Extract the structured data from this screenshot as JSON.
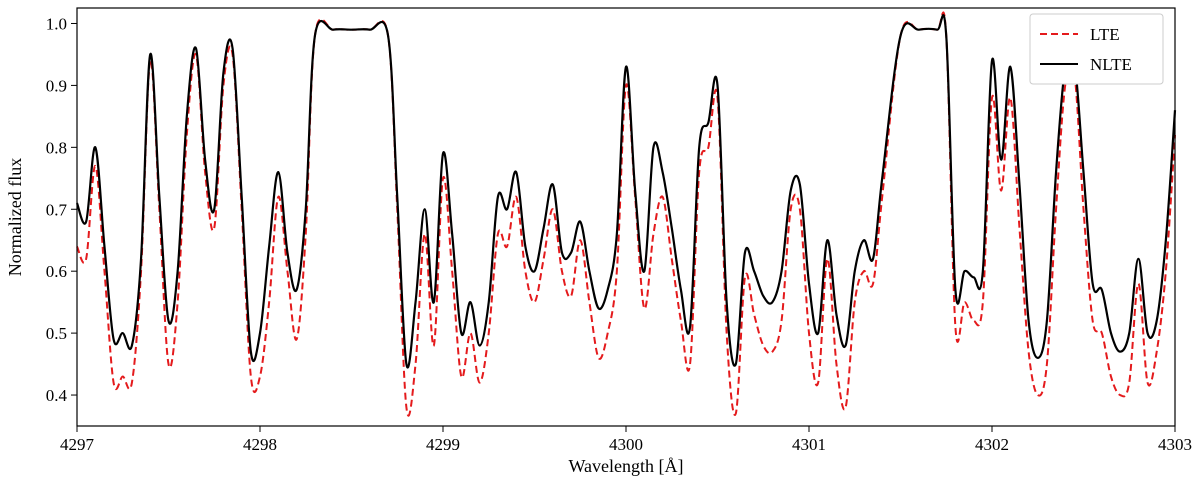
{
  "chart_data": {
    "type": "line",
    "title": "",
    "xlabel": "Wavelength [Å]",
    "ylabel": "Normalized flux",
    "xlim": [
      4297,
      4303
    ],
    "ylim": [
      0.35,
      1.025
    ],
    "xticks": [
      4297,
      4298,
      4299,
      4300,
      4301,
      4302,
      4303
    ],
    "yticks": [
      0.4,
      0.5,
      0.6,
      0.7,
      0.8,
      0.9,
      1.0
    ],
    "xtick_labels": [
      "4297",
      "4298",
      "4299",
      "4300",
      "4301",
      "4302",
      "4303"
    ],
    "ytick_labels": [
      "0.4",
      "0.5",
      "0.6",
      "0.7",
      "0.8",
      "0.9",
      "1.0"
    ],
    "grid": false,
    "legend_position": "top-right",
    "series": [
      {
        "name": "LTE",
        "color": "#e41a1c",
        "style": "dashed",
        "x": [
          4297.0,
          4297.05,
          4297.1,
          4297.15,
          4297.2,
          4297.25,
          4297.3,
          4297.35,
          4297.4,
          4297.45,
          4297.5,
          4297.55,
          4297.6,
          4297.65,
          4297.7,
          4297.75,
          4297.8,
          4297.85,
          4297.9,
          4297.95,
          4298.0,
          4298.05,
          4298.1,
          4298.15,
          4298.2,
          4298.25,
          4298.3,
          4298.4,
          4298.5,
          4298.6,
          4298.7,
          4298.75,
          4298.8,
          4298.85,
          4298.9,
          4298.95,
          4299.0,
          4299.05,
          4299.1,
          4299.15,
          4299.2,
          4299.25,
          4299.3,
          4299.35,
          4299.4,
          4299.45,
          4299.5,
          4299.55,
          4299.6,
          4299.65,
          4299.7,
          4299.75,
          4299.8,
          4299.85,
          4299.9,
          4299.95,
          4300.0,
          4300.05,
          4300.1,
          4300.15,
          4300.2,
          4300.25,
          4300.3,
          4300.35,
          4300.4,
          4300.45,
          4300.5,
          4300.55,
          4300.6,
          4300.65,
          4300.7,
          4300.75,
          4300.8,
          4300.85,
          4300.9,
          4300.95,
          4301.0,
          4301.05,
          4301.1,
          4301.15,
          4301.2,
          4301.25,
          4301.3,
          4301.35,
          4301.4,
          4301.5,
          4301.6,
          4301.7,
          4301.75,
          4301.8,
          4301.85,
          4301.9,
          4301.95,
          4302.0,
          4302.05,
          4302.1,
          4302.15,
          4302.2,
          4302.25,
          4302.3,
          4302.35,
          4302.4,
          4302.45,
          4302.5,
          4302.55,
          4302.6,
          4302.65,
          4302.7,
          4302.75,
          4302.8,
          4302.85,
          4302.9,
          4302.95,
          4303.0
        ],
        "y": [
          0.64,
          0.62,
          0.77,
          0.6,
          0.42,
          0.43,
          0.42,
          0.6,
          0.94,
          0.7,
          0.45,
          0.55,
          0.82,
          0.95,
          0.76,
          0.67,
          0.9,
          0.95,
          0.7,
          0.43,
          0.43,
          0.55,
          0.72,
          0.6,
          0.49,
          0.66,
          0.98,
          0.99,
          0.99,
          0.99,
          0.98,
          0.7,
          0.38,
          0.45,
          0.66,
          0.48,
          0.75,
          0.6,
          0.43,
          0.5,
          0.42,
          0.5,
          0.66,
          0.64,
          0.72,
          0.6,
          0.55,
          0.62,
          0.7,
          0.6,
          0.56,
          0.65,
          0.55,
          0.46,
          0.5,
          0.6,
          0.9,
          0.72,
          0.54,
          0.66,
          0.72,
          0.62,
          0.52,
          0.45,
          0.76,
          0.8,
          0.88,
          0.5,
          0.37,
          0.59,
          0.53,
          0.48,
          0.47,
          0.52,
          0.7,
          0.7,
          0.5,
          0.42,
          0.62,
          0.45,
          0.38,
          0.55,
          0.6,
          0.58,
          0.72,
          0.98,
          0.99,
          0.99,
          0.98,
          0.51,
          0.55,
          0.52,
          0.55,
          0.88,
          0.73,
          0.88,
          0.67,
          0.47,
          0.4,
          0.45,
          0.7,
          0.9,
          0.92,
          0.7,
          0.52,
          0.5,
          0.43,
          0.4,
          0.42,
          0.58,
          0.42,
          0.47,
          0.6,
          0.82
        ]
      },
      {
        "name": "NLTE",
        "color": "#000000",
        "style": "solid",
        "x": [
          4297.0,
          4297.05,
          4297.1,
          4297.15,
          4297.2,
          4297.25,
          4297.3,
          4297.35,
          4297.4,
          4297.45,
          4297.5,
          4297.55,
          4297.6,
          4297.65,
          4297.7,
          4297.75,
          4297.8,
          4297.85,
          4297.9,
          4297.95,
          4298.0,
          4298.05,
          4298.1,
          4298.15,
          4298.2,
          4298.25,
          4298.3,
          4298.4,
          4298.5,
          4298.6,
          4298.7,
          4298.75,
          4298.8,
          4298.85,
          4298.9,
          4298.95,
          4299.0,
          4299.05,
          4299.1,
          4299.15,
          4299.2,
          4299.25,
          4299.3,
          4299.35,
          4299.4,
          4299.45,
          4299.5,
          4299.55,
          4299.6,
          4299.65,
          4299.7,
          4299.75,
          4299.8,
          4299.85,
          4299.9,
          4299.95,
          4300.0,
          4300.05,
          4300.1,
          4300.15,
          4300.2,
          4300.25,
          4300.3,
          4300.35,
          4300.4,
          4300.45,
          4300.5,
          4300.55,
          4300.6,
          4300.65,
          4300.7,
          4300.75,
          4300.8,
          4300.85,
          4300.9,
          4300.95,
          4301.0,
          4301.05,
          4301.1,
          4301.15,
          4301.2,
          4301.25,
          4301.3,
          4301.35,
          4301.4,
          4301.5,
          4301.6,
          4301.7,
          4301.75,
          4301.8,
          4301.85,
          4301.9,
          4301.95,
          4302.0,
          4302.05,
          4302.1,
          4302.15,
          4302.2,
          4302.25,
          4302.3,
          4302.35,
          4302.4,
          4302.45,
          4302.5,
          4302.55,
          4302.6,
          4302.65,
          4302.7,
          4302.75,
          4302.8,
          4302.85,
          4302.9,
          4302.95,
          4303.0
        ],
        "y": [
          0.71,
          0.68,
          0.8,
          0.64,
          0.49,
          0.5,
          0.48,
          0.62,
          0.95,
          0.72,
          0.52,
          0.6,
          0.85,
          0.96,
          0.78,
          0.7,
          0.92,
          0.96,
          0.72,
          0.47,
          0.5,
          0.64,
          0.76,
          0.63,
          0.57,
          0.7,
          0.98,
          0.99,
          0.99,
          0.99,
          0.98,
          0.72,
          0.45,
          0.55,
          0.7,
          0.55,
          0.79,
          0.66,
          0.5,
          0.55,
          0.48,
          0.55,
          0.72,
          0.7,
          0.76,
          0.64,
          0.6,
          0.67,
          0.74,
          0.63,
          0.63,
          0.68,
          0.6,
          0.54,
          0.57,
          0.66,
          0.93,
          0.73,
          0.6,
          0.8,
          0.76,
          0.67,
          0.57,
          0.51,
          0.8,
          0.84,
          0.9,
          0.55,
          0.45,
          0.63,
          0.6,
          0.56,
          0.55,
          0.6,
          0.73,
          0.74,
          0.58,
          0.5,
          0.65,
          0.53,
          0.48,
          0.6,
          0.65,
          0.62,
          0.75,
          0.98,
          0.99,
          0.99,
          0.98,
          0.57,
          0.6,
          0.59,
          0.6,
          0.94,
          0.78,
          0.93,
          0.74,
          0.52,
          0.46,
          0.52,
          0.76,
          0.93,
          0.94,
          0.76,
          0.58,
          0.57,
          0.5,
          0.47,
          0.5,
          0.62,
          0.5,
          0.52,
          0.65,
          0.86
        ]
      }
    ]
  }
}
